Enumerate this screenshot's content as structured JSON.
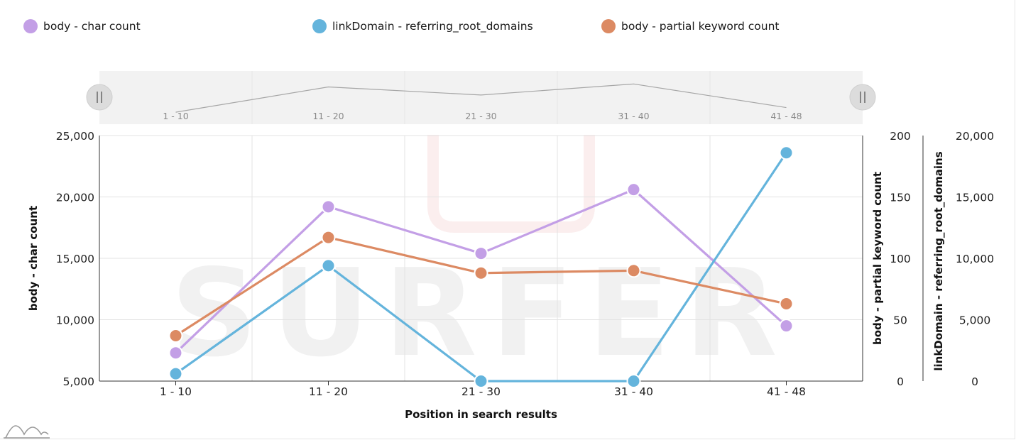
{
  "legend": {
    "items": [
      {
        "label": "body - char count",
        "color": "#c39fe6"
      },
      {
        "label": "linkDomain - referring_root_domains",
        "color": "#64b4dc"
      },
      {
        "label": "body - partial keyword count",
        "color": "#dc8a63"
      }
    ]
  },
  "watermark": "SURFER",
  "colors": {
    "grid": "#e3e3e3",
    "navigator_bg": "#f2f2f2",
    "axis": "#333333",
    "navigator_line": "#a6a6a6"
  },
  "chart_data": {
    "type": "line",
    "categories": [
      "1 - 10",
      "11 - 20",
      "21 - 30",
      "31 - 40",
      "41 - 48"
    ],
    "xlabel": "Position in search results",
    "axes": {
      "left": {
        "title": "body - char count",
        "min": 5000,
        "max": 25000,
        "ticks": [
          "25,000",
          "20,000",
          "15,000",
          "10,000",
          "5,000"
        ]
      },
      "right1": {
        "title": "body - partial keyword count",
        "min": 0,
        "max": 200,
        "ticks": [
          "200",
          "150",
          "100",
          "50",
          "0"
        ]
      },
      "right2": {
        "title": "linkDomain - referring_root_domains",
        "min": 0,
        "max": 20000,
        "ticks": [
          "20,000",
          "15,000",
          "10,000",
          "5,000",
          "0"
        ]
      }
    },
    "series": [
      {
        "name": "body - char count",
        "axis": "left",
        "color": "#c39fe6",
        "values": [
          7300,
          19200,
          15400,
          20600,
          9500
        ]
      },
      {
        "name": "linkDomain - referring_root_domains",
        "axis": "right2",
        "color": "#64b4dc",
        "values": [
          600,
          9400,
          0,
          0,
          18600
        ]
      },
      {
        "name": "body - partial keyword count",
        "axis": "right1",
        "color": "#dc8a63",
        "values": [
          37,
          117,
          88,
          90,
          63
        ]
      }
    ],
    "navigator": {
      "series": "body - char count"
    },
    "grid": true,
    "legend_position": "top"
  }
}
